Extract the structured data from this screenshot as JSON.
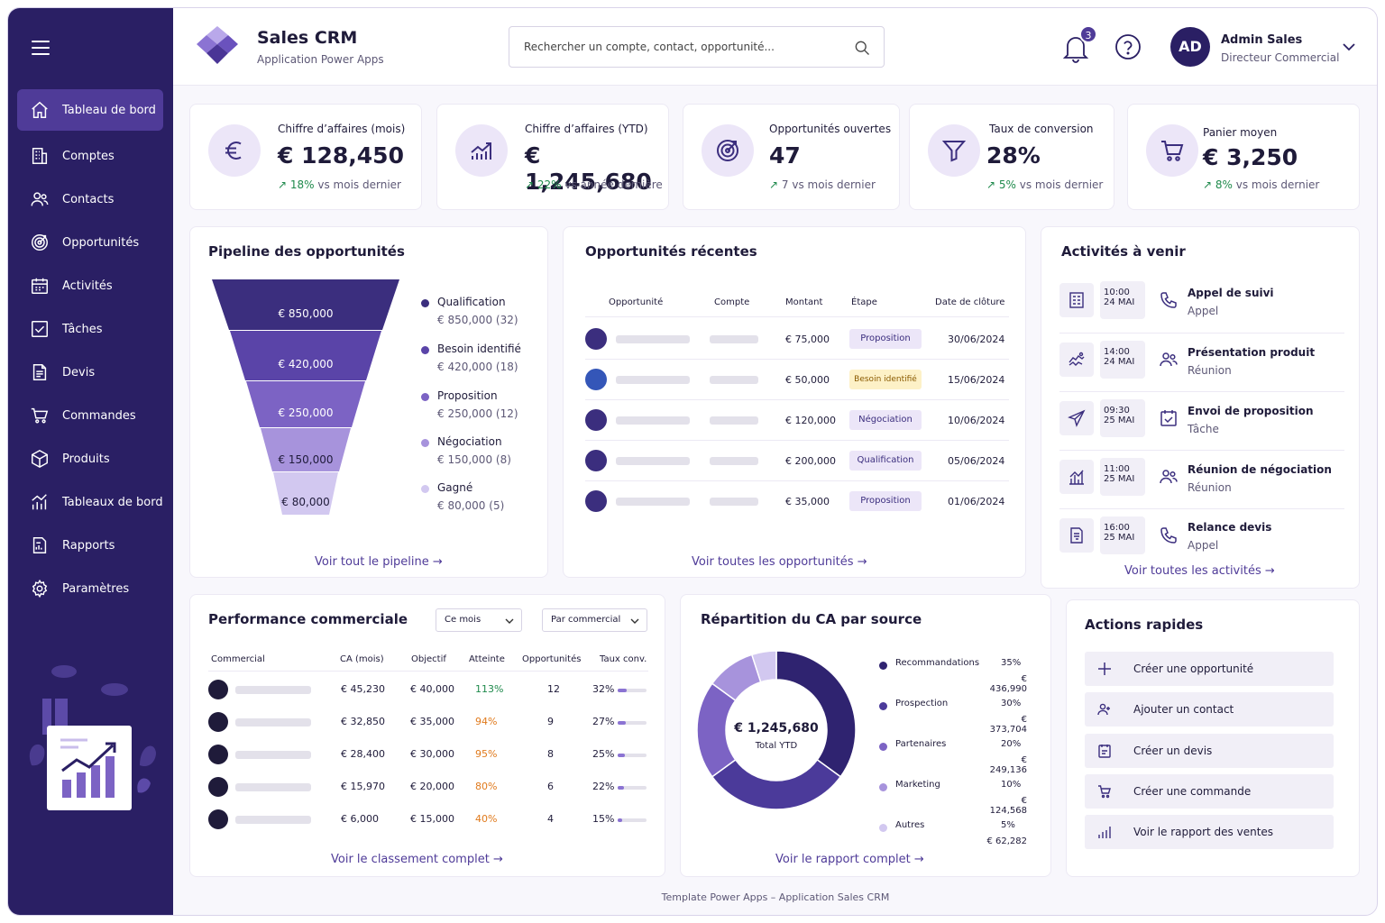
{
  "app": {
    "title": "Sales CRM",
    "subtitle": "Application Power Apps"
  },
  "search": {
    "placeholder": "Rechercher un compte, contact, opportunité..."
  },
  "notifications": {
    "count": "3"
  },
  "user": {
    "initials": "AD",
    "name": "Admin Sales",
    "role": "Directeur Commercial"
  },
  "sidebar": {
    "items": [
      {
        "label": "Tableau de bord",
        "icon": "home-icon"
      },
      {
        "label": "Comptes",
        "icon": "building-icon"
      },
      {
        "label": "Contacts",
        "icon": "users-icon"
      },
      {
        "label": "Opportunités",
        "icon": "target-icon"
      },
      {
        "label": "Activités",
        "icon": "calendar-icon"
      },
      {
        "label": "Tâches",
        "icon": "checkbox-icon"
      },
      {
        "label": "Devis",
        "icon": "document-icon"
      },
      {
        "label": "Commandes",
        "icon": "cart-icon"
      },
      {
        "label": "Produits",
        "icon": "box-icon"
      },
      {
        "label": "Tableaux de bord",
        "icon": "bar-chart-icon"
      },
      {
        "label": "Rapports",
        "icon": "report-icon"
      },
      {
        "label": "Paramètres",
        "icon": "gear-icon"
      }
    ]
  },
  "kpis": [
    {
      "label": "Chiffre d’affaires (mois)",
      "value": "€ 128,450",
      "delta": "18%",
      "delta_text": "vs mois dernier",
      "icon": "euro-icon"
    },
    {
      "label": "Chiffre d’affaires (YTD)",
      "value": "€ 1,245,680",
      "delta": "22%",
      "delta_text": "vs année dernière",
      "icon": "growth-chart-icon"
    },
    {
      "label": "Opportunités ouvertes",
      "value": "47",
      "delta": "7",
      "delta_text": "vs mois dernier",
      "icon": "target-icon"
    },
    {
      "label": "Taux de conversion",
      "value": "28%",
      "delta": "5%",
      "delta_text": "vs mois dernier",
      "icon": "funnel-icon"
    },
    {
      "label": "Panier moyen",
      "value": "€ 3,250",
      "delta": "8%",
      "delta_text": "vs mois dernier",
      "icon": "cart-icon"
    }
  ],
  "pipeline": {
    "title": "Pipeline des opportunités",
    "stages": [
      {
        "name": "Qualification",
        "value": "€ 850,000",
        "count": "(32)",
        "color": "#3b2e7e"
      },
      {
        "name": "Besoin identifié",
        "value": "€ 420,000",
        "count": "(18)",
        "color": "#5a44a8"
      },
      {
        "name": "Proposition",
        "value": "€ 250,000",
        "count": "(12)",
        "color": "#7c63c4"
      },
      {
        "name": "Négociation",
        "value": "€ 150,000",
        "count": "(8)",
        "color": "#a793dc"
      },
      {
        "name": "Gagné",
        "value": "€ 80,000",
        "count": "(5)",
        "color": "#d2c8f0"
      }
    ],
    "link": "Voir tout le pipeline"
  },
  "recent": {
    "title": "Opportunités récentes",
    "columns": [
      "Opportunité",
      "Compte",
      "Montant",
      "Étape",
      "Date de clôture"
    ],
    "rows": [
      {
        "amount": "€ 75,000",
        "stage": "Proposition",
        "date": "30/06/2024"
      },
      {
        "amount": "€ 50,000",
        "stage": "Besoin identifié",
        "date": "15/06/2024"
      },
      {
        "amount": "€ 120,000",
        "stage": "Négociation",
        "date": "10/06/2024"
      },
      {
        "amount": "€ 200,000",
        "stage": "Qualification",
        "date": "05/06/2024"
      },
      {
        "amount": "€ 35,000",
        "stage": "Proposition",
        "date": "01/06/2024"
      }
    ],
    "link": "Voir toutes les opportunités"
  },
  "activities": {
    "title": "Activités à venir",
    "items": [
      {
        "time": "10:00",
        "day": "24 MAI",
        "title": "Appel de suivi",
        "type": "Appel",
        "icon": "building-doc-icon",
        "type_icon": "phone-icon"
      },
      {
        "time": "14:00",
        "day": "24 MAI",
        "title": "Présentation produit",
        "type": "Réunion",
        "icon": "handshake-icon",
        "type_icon": "users-icon"
      },
      {
        "time": "09:30",
        "day": "25 MAI",
        "title": "Envoi de proposition",
        "type": "Tâche",
        "icon": "send-icon",
        "type_icon": "task-icon"
      },
      {
        "time": "11:00",
        "day": "25 MAI",
        "title": "Réunion de négociation",
        "type": "Réunion",
        "icon": "chart-icon",
        "type_icon": "users-icon"
      },
      {
        "time": "16:00",
        "day": "25 MAI",
        "title": "Relance devis",
        "type": "Appel",
        "icon": "invoice-icon",
        "type_icon": "phone-icon"
      }
    ],
    "link": "Voir toutes les activités"
  },
  "performance": {
    "title": "Performance commerciale",
    "filter_period": "Ce mois",
    "filter_group": "Par commercial",
    "columns": [
      "Commercial",
      "CA (mois)",
      "Objectif",
      "Atteinte",
      "Opportunités",
      "Taux conv."
    ],
    "rows": [
      {
        "ca": "€ 45,230",
        "target": "€ 40,000",
        "reach": "113%",
        "reach_color": "#1f8a4c",
        "opps": "12",
        "conv": "32%",
        "conv_value": 0.32
      },
      {
        "ca": "€ 32,850",
        "target": "€ 35,000",
        "reach": "94%",
        "reach_color": "#e07a1c",
        "opps": "9",
        "conv": "27%",
        "conv_value": 0.27
      },
      {
        "ca": "€ 28,400",
        "target": "€ 30,000",
        "reach": "95%",
        "reach_color": "#e07a1c",
        "opps": "8",
        "conv": "25%",
        "conv_value": 0.25
      },
      {
        "ca": "€ 15,970",
        "target": "€ 20,000",
        "reach": "80%",
        "reach_color": "#e07a1c",
        "opps": "6",
        "conv": "22%",
        "conv_value": 0.22
      },
      {
        "ca": "€ 6,000",
        "target": "€ 15,000",
        "reach": "40%",
        "reach_color": "#e07a1c",
        "opps": "4",
        "conv": "15%",
        "conv_value": 0.15
      }
    ],
    "link": "Voir le classement complet"
  },
  "chart_data": {
    "type": "pie",
    "title": "Répartition du CA par source",
    "center_value": "€ 1,245,680",
    "center_label": "Total YTD",
    "slices": [
      {
        "name": "Recommandations",
        "percent": 35,
        "value": "€ 436,990",
        "color": "#2f2370"
      },
      {
        "name": "Prospection",
        "percent": 30,
        "value": "€ 373,704",
        "color": "#4b3a9a"
      },
      {
        "name": "Partenaires",
        "percent": 20,
        "value": "€ 249,136",
        "color": "#7c63c4"
      },
      {
        "name": "Marketing",
        "percent": 10,
        "value": "€ 124,568",
        "color": "#a793dc"
      },
      {
        "name": "Autres",
        "percent": 5,
        "value": "€ 62,282",
        "color": "#d2c8f0"
      }
    ],
    "link": "Voir le rapport complet"
  },
  "quick_actions": {
    "title": "Actions rapides",
    "items": [
      {
        "label": "Créer une opportunité",
        "icon": "plus-icon"
      },
      {
        "label": "Ajouter un contact",
        "icon": "add-user-icon"
      },
      {
        "label": "Créer un devis",
        "icon": "quote-icon"
      },
      {
        "label": "Créer une commande",
        "icon": "cart-icon"
      },
      {
        "label": "Voir le rapport des ventes",
        "icon": "bar-chart-icon"
      }
    ]
  },
  "footer": "Template Power Apps – Application Sales CRM"
}
